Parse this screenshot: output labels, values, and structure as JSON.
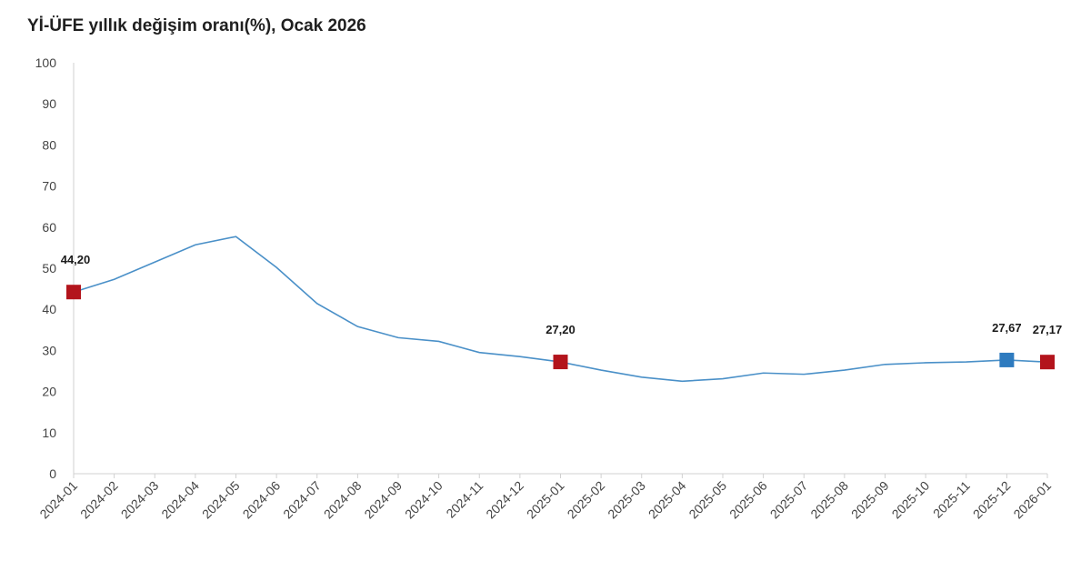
{
  "chart_data": {
    "type": "line",
    "title": "Yİ-ÜFE yıllık değişim oranı(%), Ocak 2026",
    "xlabel": "",
    "ylabel": "",
    "ylim": [
      0,
      100
    ],
    "yticks": [
      0,
      10,
      20,
      30,
      40,
      50,
      60,
      70,
      80,
      90,
      100
    ],
    "grid": false,
    "categories": [
      "2024-01",
      "2024-02",
      "2024-03",
      "2024-04",
      "2024-05",
      "2024-06",
      "2024-07",
      "2024-08",
      "2024-09",
      "2024-10",
      "2024-11",
      "2024-12",
      "2025-01",
      "2025-02",
      "2025-03",
      "2025-04",
      "2025-05",
      "2025-06",
      "2025-07",
      "2025-08",
      "2025-09",
      "2025-10",
      "2025-11",
      "2025-12",
      "2026-01"
    ],
    "series": [
      {
        "values": [
          44.2,
          47.3,
          51.5,
          55.7,
          57.7,
          50.2,
          41.4,
          35.8,
          33.1,
          32.2,
          29.5,
          28.5,
          27.2,
          25.2,
          23.5,
          22.5,
          23.1,
          24.5,
          24.2,
          25.2,
          26.6,
          27.0,
          27.2,
          27.67,
          27.17
        ],
        "color": "#4a90c8"
      }
    ],
    "markers": [
      {
        "index": 0,
        "label": "44,20",
        "color": "#b3141c"
      },
      {
        "index": 12,
        "label": "27,20",
        "color": "#b3141c"
      },
      {
        "index": 23,
        "label": "27,67",
        "color": "#2e7bbf"
      },
      {
        "index": 24,
        "label": "27,17",
        "color": "#b3141c"
      }
    ],
    "axis_color": "#d0d0d0"
  }
}
